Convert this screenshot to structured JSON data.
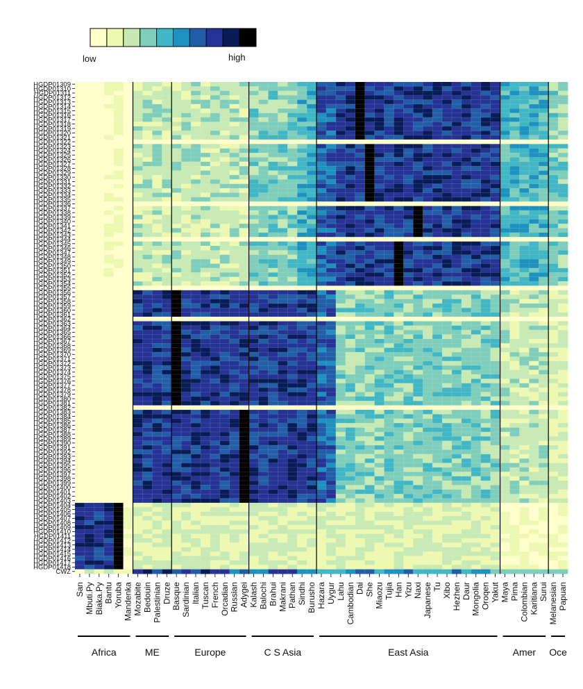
{
  "chart_data": {
    "type": "heatmap",
    "title": "",
    "legend": {
      "low_label": "low",
      "high_label": "high",
      "colors": [
        "#ffffcc",
        "#edf8b1",
        "#c7e9b4",
        "#7fcdbb",
        "#41b6c4",
        "#1d91c0",
        "#225ea8",
        "#253494",
        "#081d58",
        "#000000"
      ]
    },
    "rows": [
      "HGDP01309",
      "HGDP01310",
      "HGDP01311",
      "HGDP01312",
      "HGDP01313",
      "HGDP01314",
      "HGDP01315",
      "HGDP01316",
      "HGDP01317",
      "HGDP01318",
      "HGDP01319",
      "HGDP01320",
      "HGDP01321",
      "HGDP01322",
      "HGDP01323",
      "HGDP01324",
      "HGDP01325",
      "HGDP01326",
      "HGDP01327",
      "HGDP01328",
      "HGDP01329",
      "HGDP01330",
      "HGDP01331",
      "HGDP01332",
      "HGDP01333",
      "HGDP01334",
      "HGDP01335",
      "HGDP01336",
      "HGDP01337",
      "HGDP01338",
      "HGDP01339",
      "HGDP01340",
      "HGDP01341",
      "HGDP01342",
      "HGDP01343",
      "HGDP01344",
      "HGDP01345",
      "HGDP01346",
      "HGDP01347",
      "HGDP01348",
      "HGDP01349",
      "HGDP01350",
      "HGDP01351",
      "HGDP01352",
      "HGDP01353",
      "HGDP01354",
      "HGDP01355",
      "HGDP01356",
      "HGDP01357",
      "HGDP01358",
      "HGDP01359",
      "HGDP01360",
      "HGDP01361",
      "HGDP01362",
      "HGDP01363",
      "HGDP01364",
      "HGDP01365",
      "HGDP01366",
      "HGDP01367",
      "HGDP01368",
      "HGDP01369",
      "HGDP01370",
      "HGDP01371",
      "HGDP01372",
      "HGDP01373",
      "HGDP01374",
      "HGDP01375",
      "HGDP01376",
      "HGDP01377",
      "HGDP01378",
      "HGDP01379",
      "HGDP01380",
      "HGDP01381",
      "HGDP01382",
      "HGDP01383",
      "HGDP01384",
      "HGDP01385",
      "HGDP01386",
      "HGDP01387",
      "HGDP01388",
      "HGDP01389",
      "HGDP01390",
      "HGDP01391",
      "HGDP01392",
      "HGDP01393",
      "HGDP01394",
      "HGDP01395",
      "HGDP01396",
      "HGDP01397",
      "HGDP01398",
      "HGDP01399",
      "HGDP01400",
      "HGDP01401",
      "HGDP01402",
      "HGDP01403",
      "HGDP01404",
      "HGDP01405",
      "HGDP01406",
      "HGDP01407",
      "HGDP01408",
      "HGDP01409",
      "HGDP01410",
      "HGDP01411",
      "HGDP01412",
      "HGDP01413",
      "HGDP01414",
      "HGDP01415",
      "HGDP01416",
      "HGDP01417",
      "HGDP01418",
      "CWZ"
    ],
    "columns": [
      "San",
      "Mbuti.Py",
      "Biaka.Py",
      "Bantu",
      "Yoruba",
      "Mandenka",
      "Mozabite",
      "Bedouin",
      "Palestinian",
      "Druze",
      "Basque",
      "Sardinian",
      "Italian",
      "Tuscan",
      "French",
      "Orcadian",
      "Russian",
      "Adygei",
      "Kalash",
      "Balochi",
      "Brahui",
      "Makrani",
      "Pathan",
      "Sindhi",
      "Burusho",
      "Hazara",
      "Uygur",
      "Lahu",
      "Cambodian",
      "Dai",
      "She",
      "Miaozu",
      "Tujia",
      "Han",
      "Yizu",
      "Naxi",
      "Japanese",
      "Tu",
      "Xibo",
      "Hezhen",
      "Daur",
      "Mongolia",
      "Oroqen",
      "Yakut",
      "Maya",
      "Pima",
      "Colombian",
      "Karitiana",
      "Surui",
      "Melanesian",
      "Papuan"
    ],
    "regions": [
      {
        "name": "Africa",
        "start": "San",
        "end": "Mandenka"
      },
      {
        "name": "ME",
        "start": "Mozabite",
        "end": "Druze"
      },
      {
        "name": "Europe",
        "start": "Basque",
        "end": "Adygei"
      },
      {
        "name": "C S Asia",
        "start": "Kalash",
        "end": "Burusho"
      },
      {
        "name": "East Asia",
        "start": "Hazara",
        "end": "Yakut"
      },
      {
        "name": "Amer",
        "start": "Maya",
        "end": "Surui"
      },
      {
        "name": "Oce",
        "start": "Melanesian",
        "end": "Papuan"
      }
    ],
    "row_blocks": [
      {
        "rows": "HGDP01309-HGDP01321",
        "profile": "eastasia_high",
        "peak_column": "Dai"
      },
      {
        "rows": "HGDP01322",
        "profile": "blank"
      },
      {
        "rows": "HGDP01323-HGDP01335",
        "profile": "eastasia_high",
        "peak_column": "She"
      },
      {
        "rows": "HGDP01336",
        "profile": "blank"
      },
      {
        "rows": "HGDP01337-HGDP01343",
        "profile": "eastasia_high",
        "peak_column": "Naxi"
      },
      {
        "rows": "HGDP01344",
        "profile": "blank"
      },
      {
        "rows": "HGDP01345-HGDP01354",
        "profile": "eastasia_high",
        "peak_column": "Han"
      },
      {
        "rows": "HGDP01355",
        "profile": "blank"
      },
      {
        "rows": "HGDP01356-HGDP01361",
        "profile": "westeurasia_high",
        "peak_column": "Basque"
      },
      {
        "rows": "HGDP01362",
        "profile": "blank"
      },
      {
        "rows": "HGDP01363-HGDP01381",
        "profile": "westeurasia_high",
        "peak_column": "Basque"
      },
      {
        "rows": "HGDP01382",
        "profile": "blank"
      },
      {
        "rows": "HGDP01383-HGDP01403",
        "profile": "westeurasia_high",
        "peak_column": "Adygei"
      },
      {
        "rows": "HGDP01404-HGDP01418",
        "profile": "africa_high",
        "peak_column": "Yoruba"
      },
      {
        "rows": "CWZ",
        "profile": "mixed"
      }
    ]
  }
}
